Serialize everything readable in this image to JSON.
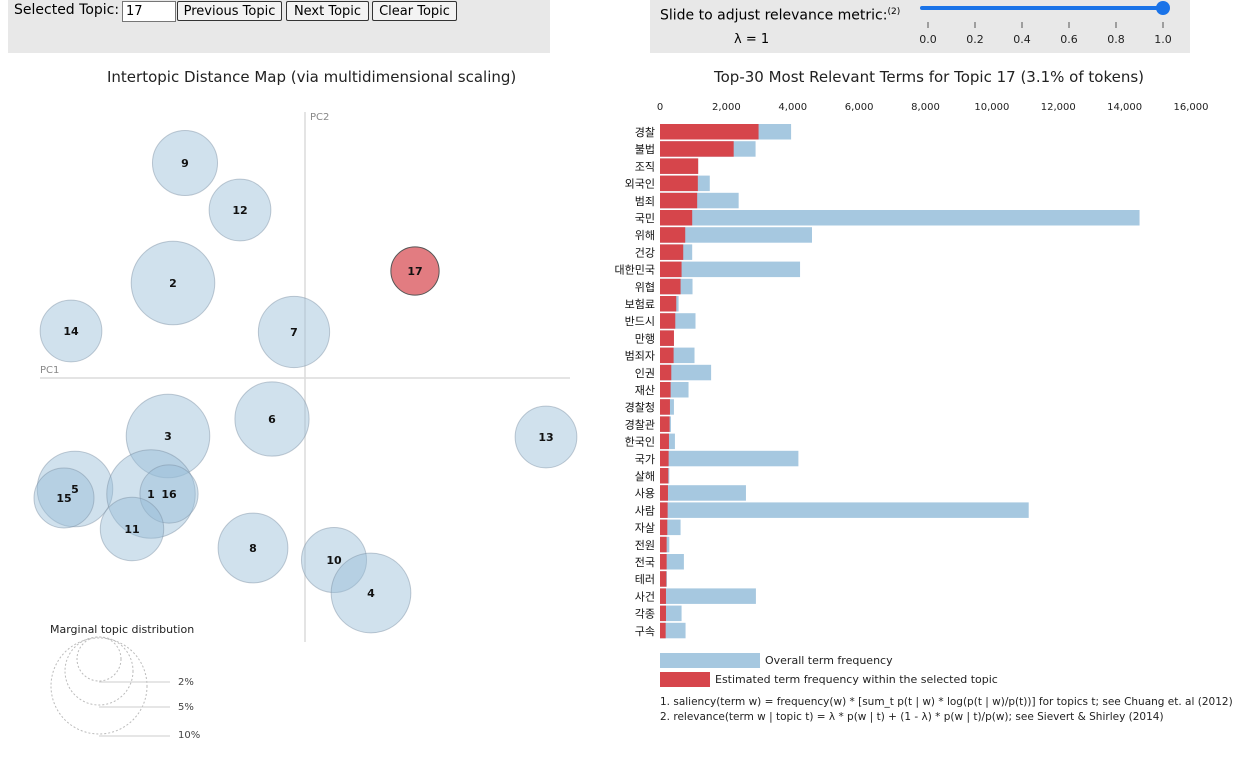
{
  "controls": {
    "selected_topic_label": "Selected Topic:",
    "selected_topic_value": "17",
    "previous_label": "Previous Topic",
    "next_label": "Next Topic",
    "clear_label": "Clear Topic",
    "slider_label": "Slide to adjust relevance metric:",
    "slider_footnote": "(2)",
    "lambda_text": "λ = 1",
    "lambda_value": 1,
    "slider_ticks": [
      "0.0",
      "0.2",
      "0.4",
      "0.6",
      "0.8",
      "1.0"
    ]
  },
  "map": {
    "title": "Intertopic Distance Map (via multidimensional scaling)",
    "pc1_label": "PC1",
    "pc2_label": "PC2",
    "selected_topic": 17,
    "topics": [
      {
        "id": "9",
        "size": 2.0
      },
      {
        "id": "12",
        "size": 1.8
      },
      {
        "id": "2",
        "size": 3.3
      },
      {
        "id": "17",
        "size": 1.1
      },
      {
        "id": "14",
        "size": 1.8
      },
      {
        "id": "7",
        "size": 2.4
      },
      {
        "id": "3",
        "size": 3.3
      },
      {
        "id": "6",
        "size": 2.6
      },
      {
        "id": "13",
        "size": 1.8
      },
      {
        "id": "5",
        "size": 2.7
      },
      {
        "id": "15",
        "size": 1.7
      },
      {
        "id": "1",
        "size": 3.7
      },
      {
        "id": "16",
        "size": 1.6
      },
      {
        "id": "11",
        "size": 1.9
      },
      {
        "id": "8",
        "size": 2.3
      },
      {
        "id": "10",
        "size": 2.0
      },
      {
        "id": "4",
        "size": 3.0
      }
    ],
    "marginal": {
      "title": "Marginal topic distribution",
      "labels": [
        "2%",
        "5%",
        "10%"
      ]
    }
  },
  "terms": {
    "title": "Top-30 Most Relevant Terms for Topic 17 (3.1% of tokens)",
    "axis_ticks": [
      "0",
      "2,000",
      "4,000",
      "6,000",
      "8,000",
      "10,000",
      "12,000",
      "14,000",
      "16,000"
    ],
    "legend_overall": "Overall term frequency",
    "legend_estimated": "Estimated term frequency within the selected topic",
    "footnote1": "1. saliency(term w) = frequency(w) * [sum_t p(t | w) * log(p(t | w)/p(t))] for topics t; see Chuang et. al (2012)",
    "footnote2": "2. relevance(term w | topic t) = λ * p(w | t) + (1 - λ) * p(w | t)/p(w); see Sievert & Shirley (2014)",
    "colors": {
      "overall": "#a6c8e0",
      "estimated": "#d6454b"
    }
  },
  "chart_data": {
    "type": "bar",
    "title": "Top-30 Most Relevant Terms for Topic 17 (3.1% of tokens)",
    "xlabel": "",
    "ylabel": "",
    "xlim": [
      0,
      16000
    ],
    "categories": [
      "경찰",
      "불법",
      "조직",
      "외국인",
      "범죄",
      "국민",
      "위해",
      "건강",
      "대한민국",
      "위협",
      "보험료",
      "반드시",
      "만행",
      "범죄자",
      "인권",
      "재산",
      "경찰청",
      "경찰관",
      "한국인",
      "국가",
      "살해",
      "사용",
      "사람",
      "자살",
      "전원",
      "전국",
      "테러",
      "사건",
      "각종",
      "구속"
    ],
    "series": [
      {
        "name": "Overall term frequency",
        "values": [
          3950,
          2880,
          1150,
          1500,
          2370,
          14450,
          4580,
          970,
          4220,
          980,
          560,
          1070,
          420,
          1040,
          1540,
          860,
          420,
          330,
          450,
          4170,
          280,
          2590,
          11110,
          620,
          280,
          720,
          210,
          2890,
          650,
          770
        ]
      },
      {
        "name": "Estimated term frequency within the selected topic",
        "values": [
          2970,
          2220,
          1150,
          1140,
          1120,
          970,
          760,
          700,
          650,
          620,
          490,
          460,
          420,
          410,
          340,
          320,
          300,
          290,
          270,
          260,
          250,
          240,
          230,
          220,
          200,
          200,
          190,
          180,
          180,
          170
        ]
      }
    ]
  }
}
